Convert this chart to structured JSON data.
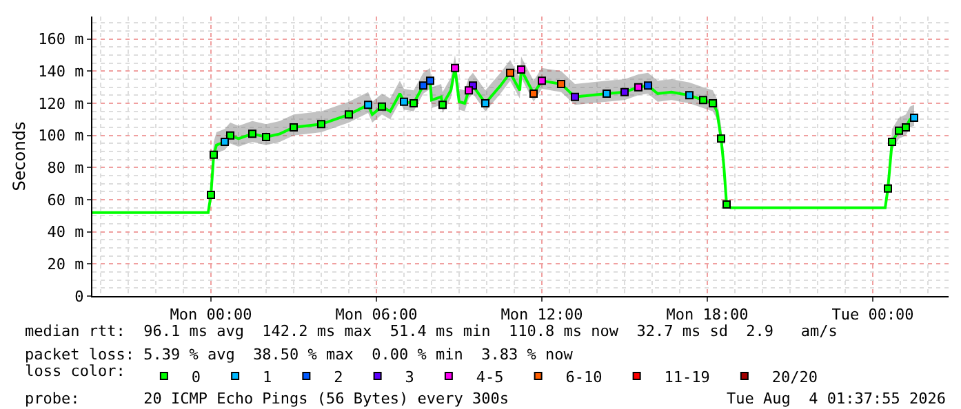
{
  "chart_data": {
    "type": "line",
    "ylabel": "Seconds",
    "x": [
      "2026-08-02T19:42",
      "2026-08-02T23:54",
      "2026-08-03T00:00",
      "2026-08-03T00:06",
      "2026-08-03T00:12",
      "2026-08-03T00:30",
      "2026-08-03T00:42",
      "2026-08-03T01:00",
      "2026-08-03T01:30",
      "2026-08-03T02:00",
      "2026-08-03T02:30",
      "2026-08-03T03:00",
      "2026-08-03T04:00",
      "2026-08-03T05:00",
      "2026-08-03T05:42",
      "2026-08-03T05:51",
      "2026-08-03T06:12",
      "2026-08-03T06:30",
      "2026-08-03T06:51",
      "2026-08-03T07:00",
      "2026-08-03T07:21",
      "2026-08-03T07:42",
      "2026-08-03T07:57",
      "2026-08-03T08:00",
      "2026-08-03T08:21",
      "2026-08-03T08:24",
      "2026-08-03T08:42",
      "2026-08-03T08:51",
      "2026-08-03T09:00",
      "2026-08-03T09:12",
      "2026-08-03T09:21",
      "2026-08-03T09:30",
      "2026-08-03T09:57",
      "2026-08-03T10:30",
      "2026-08-03T10:51",
      "2026-08-03T11:12",
      "2026-08-03T11:15",
      "2026-08-03T11:42",
      "2026-08-03T12:00",
      "2026-08-03T12:42",
      "2026-08-03T13:12",
      "2026-08-03T14:21",
      "2026-08-03T15:00",
      "2026-08-03T15:30",
      "2026-08-03T15:51",
      "2026-08-03T16:12",
      "2026-08-03T16:42",
      "2026-08-03T17:21",
      "2026-08-03T17:51",
      "2026-08-03T18:12",
      "2026-08-03T18:21",
      "2026-08-03T18:30",
      "2026-08-03T18:36",
      "2026-08-03T18:42",
      "2026-08-03T18:51",
      "2026-08-04T00:27",
      "2026-08-04T00:33",
      "2026-08-04T00:42",
      "2026-08-04T00:57",
      "2026-08-04T01:12",
      "2026-08-04T01:21",
      "2026-08-04T01:30"
    ],
    "series": [
      {
        "color": "#00ff00",
        "marker": "none",
        "values": [
          52,
          52,
          63,
          88,
          94,
          96,
          100,
          98,
          101,
          99,
          101,
          105,
          107,
          113,
          119,
          113,
          118,
          115,
          126,
          121,
          120,
          131,
          134,
          122,
          124,
          119,
          128,
          142,
          121,
          120,
          128,
          131,
          120,
          131,
          139,
          128,
          141,
          126,
          134,
          132,
          124,
          126,
          127,
          130,
          131,
          126,
          127,
          125,
          122,
          120,
          115,
          98,
          81,
          57,
          55,
          55,
          67,
          96,
          103,
          105,
          110,
          111
        ],
        "lower": [
          52,
          52,
          63,
          83,
          89,
          91,
          95,
          93,
          96,
          94,
          96,
          100,
          102,
          108,
          114,
          108,
          113,
          110,
          121,
          116,
          115,
          126,
          129,
          117,
          119,
          114,
          123,
          137,
          116,
          115,
          123,
          126,
          115,
          126,
          134,
          123,
          136,
          121,
          129,
          127,
          119,
          121,
          122,
          125,
          126,
          121,
          122,
          120,
          117,
          115,
          110,
          93,
          76,
          57,
          55,
          55,
          67,
          91,
          98,
          100,
          105,
          106
        ],
        "upper": [
          52,
          52,
          63,
          96,
          102,
          104,
          108,
          106,
          109,
          107,
          109,
          113,
          115,
          121,
          127,
          121,
          126,
          123,
          134,
          129,
          128,
          139,
          142,
          130,
          132,
          127,
          136,
          150,
          129,
          128,
          136,
          139,
          128,
          139,
          147,
          136,
          149,
          134,
          142,
          140,
          132,
          134,
          135,
          138,
          139,
          134,
          135,
          133,
          130,
          128,
          123,
          106,
          89,
          57,
          55,
          55,
          67,
          104,
          111,
          113,
          118,
          119
        ]
      },
      {
        "type": "scatter",
        "name": "0",
        "color": "#00ff00",
        "x": [
          "2026-08-03T00:00",
          "2026-08-03T00:06",
          "2026-08-03T00:42",
          "2026-08-03T01:30",
          "2026-08-03T02:00",
          "2026-08-03T03:00",
          "2026-08-03T04:00",
          "2026-08-03T05:00",
          "2026-08-03T06:12",
          "2026-08-03T07:21",
          "2026-08-03T08:24",
          "2026-08-03T17:51",
          "2026-08-03T18:12",
          "2026-08-03T18:30",
          "2026-08-03T18:42",
          "2026-08-04T00:33",
          "2026-08-04T00:42",
          "2026-08-04T00:57",
          "2026-08-04T01:12"
        ],
        "values": [
          63,
          88,
          100,
          101,
          99,
          105,
          107,
          113,
          118,
          120,
          119,
          122,
          120,
          98,
          57,
          67,
          96,
          103,
          105
        ]
      },
      {
        "type": "scatter",
        "name": "1",
        "color": "#00b8ff",
        "x": [
          "2026-08-03T00:30",
          "2026-08-03T05:42",
          "2026-08-03T07:00",
          "2026-08-03T09:57",
          "2026-08-03T14:21",
          "2026-08-03T17:21",
          "2026-08-04T01:30"
        ],
        "values": [
          96,
          119,
          121,
          120,
          126,
          125,
          111
        ]
      },
      {
        "type": "scatter",
        "name": "2",
        "color": "#0059ff",
        "x": [
          "2026-08-03T07:42",
          "2026-08-03T07:57",
          "2026-08-03T15:51"
        ],
        "values": [
          131,
          134,
          131
        ]
      },
      {
        "type": "scatter",
        "name": "3",
        "color": "#5e00ff",
        "x": [
          "2026-08-03T09:30",
          "2026-08-03T13:12",
          "2026-08-03T15:00"
        ],
        "values": [
          131,
          124,
          127
        ]
      },
      {
        "type": "scatter",
        "name": "4-5",
        "color": "#ff00f5",
        "x": [
          "2026-08-03T08:51",
          "2026-08-03T09:21",
          "2026-08-03T11:15",
          "2026-08-03T12:00",
          "2026-08-03T15:30"
        ],
        "values": [
          142,
          128,
          141,
          134,
          130
        ]
      },
      {
        "type": "scatter",
        "name": "6-10",
        "color": "#ff5e00",
        "x": [
          "2026-08-03T10:51",
          "2026-08-03T11:42",
          "2026-08-03T12:42"
        ],
        "values": [
          139,
          126,
          132
        ]
      },
      {
        "type": "scatter",
        "name": "11-19",
        "color": "#ff0000",
        "values": [
          null,
          null,
          null,
          null,
          null,
          null,
          null,
          null,
          null,
          null,
          null,
          null,
          null,
          null,
          null,
          null,
          null,
          null,
          null,
          null,
          null,
          null,
          null,
          null,
          null,
          null,
          null,
          null,
          null,
          null,
          null,
          null,
          null,
          null,
          null,
          null,
          null,
          null,
          null,
          null,
          null,
          null,
          null,
          null,
          null,
          null,
          null,
          null,
          null,
          null,
          null,
          null,
          null,
          null,
          null,
          null,
          null,
          null,
          null,
          null,
          null,
          null
        ]
      },
      {
        "type": "scatter",
        "name": "20/20",
        "color": "#a10000",
        "values": [
          null,
          null,
          null,
          null,
          null,
          null,
          null,
          null,
          null,
          null,
          null,
          null,
          null,
          null,
          null,
          null,
          null,
          null,
          null,
          null,
          null,
          null,
          null,
          null,
          null,
          null,
          null,
          null,
          null,
          null,
          null,
          null,
          null,
          null,
          null,
          null,
          null,
          null,
          null,
          null,
          null,
          null,
          null,
          null,
          null,
          null,
          null,
          null,
          null,
          null,
          null,
          null,
          null,
          null,
          null,
          null,
          null,
          null,
          null,
          null,
          null,
          null
        ]
      }
    ],
    "legend_title": "loss color:",
    "legend": "bottom",
    "marker": "square",
    "grid": true,
    "xlim": [
      "2026-08-02T19:42",
      "2026-08-04T02:45"
    ],
    "xticks": [
      {
        "value": "2026-08-03T00:00",
        "label": "Mon 00:00"
      },
      {
        "value": "2026-08-03T06:00",
        "label": "Mon 06:00"
      },
      {
        "value": "2026-08-03T12:00",
        "label": "Mon 12:00"
      },
      {
        "value": "2026-08-03T18:00",
        "label": "Mon 18:00"
      },
      {
        "value": "2026-08-04T00:00",
        "label": "Tue 00:00"
      }
    ],
    "ylim": [
      0,
      174
    ],
    "yticks": [
      0,
      {
        "value": 20,
        "label": "20 m"
      },
      {
        "value": 40,
        "label": "40 m"
      },
      {
        "value": 60,
        "label": "60 m"
      },
      {
        "value": 80,
        "label": "80 m"
      },
      {
        "value": 100,
        "label": "100 m"
      },
      {
        "value": 120,
        "label": "120 m"
      },
      {
        "value": 140,
        "label": "140 m"
      },
      {
        "value": 160,
        "label": "160 m"
      }
    ],
    "annotations": [
      "median rtt:  96.1 ms avg  142.2 ms max  51.4 ms min  110.8 ms now  32.7 ms sd  2.9   am/s",
      "packet loss: 5.39 % avg  38.50 % max  0.00 % min  3.83 % now",
      "probe:       20 ICMP Echo Pings (56 Bytes) every 300s",
      "Tue Aug  4 01:37:55 2026"
    ]
  }
}
